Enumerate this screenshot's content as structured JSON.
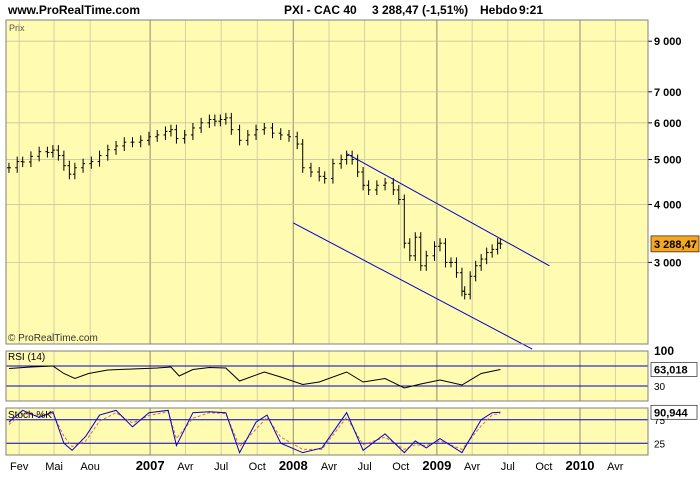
{
  "header": {
    "site": "www.ProRealTime.com",
    "instrument": "PXI - CAC 40",
    "price_change": "3 288,47 (-1,51%)",
    "period": "Hebdo",
    "time": "9:21"
  },
  "colors": {
    "panel_bg": "#fffbb0",
    "grid": "#c8c8a0",
    "frame": "#808080",
    "channel": "#0000cc",
    "price_bars": "#000000",
    "stoch_k": "#0000cc",
    "stoch_d": "#dd6666",
    "last_value_badge": "#f5a623"
  },
  "chart_data": [
    {
      "panel": "price",
      "type": "bar",
      "title": "Prix",
      "watermark": "© ProRealTime.com",
      "y_scale": "log",
      "ylim": [
        2000,
        10000
      ],
      "yticks": [
        {
          "value": 3000,
          "label": "3 000"
        },
        {
          "value": 4000,
          "label": "4 000"
        },
        {
          "value": 5000,
          "label": "5 000"
        },
        {
          "value": 6000,
          "label": "6 000"
        },
        {
          "value": 7000,
          "label": "7 000"
        },
        {
          "value": 9000,
          "label": "9 000"
        }
      ],
      "last_value": {
        "value": 3288.47,
        "label": "3 288,47"
      },
      "series": [
        {
          "type": "ohlc_weekly",
          "points": [
            [
              "2006-01-06",
              4800
            ],
            [
              "2006-01-27",
              4950
            ],
            [
              "2006-02-10",
              4940
            ],
            [
              "2006-03-03",
              5080
            ],
            [
              "2006-03-24",
              5200
            ],
            [
              "2006-04-14",
              5180
            ],
            [
              "2006-04-28",
              5240
            ],
            [
              "2006-05-12",
              5100
            ],
            [
              "2006-05-26",
              4850
            ],
            [
              "2006-06-09",
              4650
            ],
            [
              "2006-06-23",
              4800
            ],
            [
              "2006-07-14",
              4900
            ],
            [
              "2006-08-04",
              4950
            ],
            [
              "2006-08-25",
              5100
            ],
            [
              "2006-09-15",
              5250
            ],
            [
              "2006-10-06",
              5350
            ],
            [
              "2006-10-27",
              5450
            ],
            [
              "2006-11-17",
              5450
            ],
            [
              "2006-12-08",
              5500
            ],
            [
              "2006-12-29",
              5600
            ],
            [
              "2007-01-19",
              5650
            ],
            [
              "2007-02-09",
              5750
            ],
            [
              "2007-02-23",
              5800
            ],
            [
              "2007-03-09",
              5550
            ],
            [
              "2007-03-30",
              5650
            ],
            [
              "2007-04-20",
              5850
            ],
            [
              "2007-05-11",
              6000
            ],
            [
              "2007-06-01",
              6100
            ],
            [
              "2007-06-15",
              6050
            ],
            [
              "2007-06-29",
              6100
            ],
            [
              "2007-07-13",
              6150
            ],
            [
              "2007-07-27",
              5800
            ],
            [
              "2007-08-17",
              5500
            ],
            [
              "2007-09-07",
              5650
            ],
            [
              "2007-09-28",
              5800
            ],
            [
              "2007-10-19",
              5850
            ],
            [
              "2007-11-09",
              5700
            ],
            [
              "2007-11-30",
              5650
            ],
            [
              "2007-12-21",
              5600
            ],
            [
              "2008-01-11",
              5400
            ],
            [
              "2008-01-25",
              4800
            ],
            [
              "2008-02-15",
              4700
            ],
            [
              "2008-03-07",
              4600
            ],
            [
              "2008-03-21",
              4550
            ],
            [
              "2008-04-11",
              4900
            ],
            [
              "2008-05-02",
              5000
            ],
            [
              "2008-05-16",
              5100
            ],
            [
              "2008-05-30",
              5000
            ],
            [
              "2008-06-13",
              4700
            ],
            [
              "2008-06-27",
              4400
            ],
            [
              "2008-07-11",
              4300
            ],
            [
              "2008-08-01",
              4400
            ],
            [
              "2008-08-22",
              4450
            ],
            [
              "2008-09-12",
              4300
            ],
            [
              "2008-09-26",
              4100
            ],
            [
              "2008-10-10",
              3300
            ],
            [
              "2008-10-24",
              3100
            ],
            [
              "2008-11-07",
              3400
            ],
            [
              "2008-11-21",
              2950
            ],
            [
              "2008-12-05",
              3100
            ],
            [
              "2008-12-26",
              3250
            ],
            [
              "2009-01-09",
              3300
            ],
            [
              "2009-01-23",
              3000
            ],
            [
              "2009-02-06",
              3000
            ],
            [
              "2009-02-20",
              2850
            ],
            [
              "2009-03-06",
              2600
            ],
            [
              "2009-03-13",
              2560
            ],
            [
              "2009-03-27",
              2800
            ],
            [
              "2009-04-10",
              2950
            ],
            [
              "2009-04-24",
              3050
            ],
            [
              "2009-05-08",
              3150
            ],
            [
              "2009-05-22",
              3200
            ],
            [
              "2009-06-05",
              3300
            ],
            [
              "2009-06-12",
              3288.47
            ]
          ]
        },
        {
          "type": "trendline",
          "from": [
            "2008-05-16",
            5150
          ],
          "to": [
            "2009-10-15",
            2950
          ]
        },
        {
          "type": "trendline",
          "from": [
            "2008-01-01",
            3650
          ],
          "to": [
            "2009-09-01",
            1950
          ]
        }
      ]
    },
    {
      "panel": "rsi",
      "type": "line",
      "title": "RSI (14)",
      "ylim": [
        0,
        100
      ],
      "yticks": [
        {
          "value": 100,
          "label": "100"
        },
        {
          "value": 70,
          "label": "70"
        },
        {
          "value": 30,
          "label": "30"
        }
      ],
      "last_value": {
        "value": 63.018,
        "label": "63,018"
      },
      "series": [
        {
          "points": [
            [
              "2006-01-06",
              65
            ],
            [
              "2006-03-03",
              68
            ],
            [
              "2006-04-28",
              70
            ],
            [
              "2006-05-26",
              55
            ],
            [
              "2006-06-23",
              45
            ],
            [
              "2006-07-28",
              55
            ],
            [
              "2006-09-15",
              62
            ],
            [
              "2006-11-17",
              64
            ],
            [
              "2007-01-19",
              66
            ],
            [
              "2007-02-23",
              68
            ],
            [
              "2007-03-16",
              50
            ],
            [
              "2007-04-20",
              63
            ],
            [
              "2007-06-01",
              67
            ],
            [
              "2007-07-13",
              66
            ],
            [
              "2007-08-17",
              40
            ],
            [
              "2007-10-19",
              58
            ],
            [
              "2007-11-30",
              48
            ],
            [
              "2008-01-25",
              33
            ],
            [
              "2008-03-07",
              38
            ],
            [
              "2008-05-16",
              58
            ],
            [
              "2008-06-27",
              38
            ],
            [
              "2008-08-22",
              45
            ],
            [
              "2008-10-10",
              26
            ],
            [
              "2008-11-21",
              34
            ],
            [
              "2009-01-09",
              42
            ],
            [
              "2009-03-06",
              32
            ],
            [
              "2009-04-24",
              55
            ],
            [
              "2009-06-12",
              63
            ]
          ]
        }
      ]
    },
    {
      "panel": "stochastic",
      "type": "line",
      "title": "Stoch %K",
      "ylim": [
        0,
        100
      ],
      "yticks": [
        {
          "value": 75,
          "label": "75"
        },
        {
          "value": 25,
          "label": "25"
        }
      ],
      "last_value": {
        "value": 90.944,
        "label": "90,944"
      },
      "series": [
        {
          "name": "Stoch %K",
          "points": [
            [
              "2006-01-06",
              70
            ],
            [
              "2006-02-10",
              95
            ],
            [
              "2006-03-24",
              80
            ],
            [
              "2006-04-28",
              92
            ],
            [
              "2006-05-26",
              25
            ],
            [
              "2006-06-16",
              10
            ],
            [
              "2006-07-21",
              40
            ],
            [
              "2006-08-25",
              85
            ],
            [
              "2006-10-06",
              95
            ],
            [
              "2006-11-17",
              60
            ],
            [
              "2006-12-29",
              90
            ],
            [
              "2007-02-16",
              95
            ],
            [
              "2007-03-09",
              20
            ],
            [
              "2007-04-20",
              90
            ],
            [
              "2007-06-01",
              92
            ],
            [
              "2007-07-13",
              90
            ],
            [
              "2007-08-17",
              5
            ],
            [
              "2007-09-28",
              70
            ],
            [
              "2007-10-26",
              85
            ],
            [
              "2007-11-30",
              25
            ],
            [
              "2008-01-25",
              5
            ],
            [
              "2008-03-14",
              15
            ],
            [
              "2008-05-16",
              90
            ],
            [
              "2008-06-27",
              10
            ],
            [
              "2008-08-22",
              45
            ],
            [
              "2008-10-10",
              5
            ],
            [
              "2008-11-07",
              30
            ],
            [
              "2008-12-05",
              15
            ],
            [
              "2009-01-09",
              35
            ],
            [
              "2009-03-06",
              5
            ],
            [
              "2009-04-24",
              75
            ],
            [
              "2009-05-22",
              90
            ],
            [
              "2009-06-12",
              91
            ]
          ]
        },
        {
          "points": [
            [
              "2006-01-06",
              65
            ],
            [
              "2006-02-10",
              88
            ],
            [
              "2006-03-24",
              84
            ],
            [
              "2006-04-28",
              88
            ],
            [
              "2006-05-26",
              40
            ],
            [
              "2006-06-16",
              18
            ],
            [
              "2006-07-21",
              30
            ],
            [
              "2006-08-25",
              72
            ],
            [
              "2006-10-06",
              90
            ],
            [
              "2006-11-17",
              68
            ],
            [
              "2006-12-29",
              84
            ],
            [
              "2007-02-16",
              92
            ],
            [
              "2007-03-09",
              35
            ],
            [
              "2007-04-20",
              78
            ],
            [
              "2007-06-01",
              90
            ],
            [
              "2007-07-13",
              88
            ],
            [
              "2007-08-17",
              18
            ],
            [
              "2007-09-28",
              55
            ],
            [
              "2007-10-26",
              80
            ],
            [
              "2007-11-30",
              38
            ],
            [
              "2008-01-25",
              12
            ],
            [
              "2008-03-14",
              12
            ],
            [
              "2008-05-16",
              80
            ],
            [
              "2008-06-27",
              22
            ],
            [
              "2008-08-22",
              38
            ],
            [
              "2008-10-10",
              12
            ],
            [
              "2008-11-07",
              22
            ],
            [
              "2008-12-05",
              20
            ],
            [
              "2009-01-09",
              30
            ],
            [
              "2009-03-06",
              12
            ],
            [
              "2009-04-24",
              62
            ],
            [
              "2009-05-22",
              85
            ],
            [
              "2009-06-12",
              88
            ]
          ]
        }
      ]
    }
  ],
  "x_axis": {
    "ticks": [
      {
        "date": "2006-02-01",
        "label": "Fev",
        "major": false
      },
      {
        "date": "2006-05-01",
        "label": "Mai",
        "major": false
      },
      {
        "date": "2006-08-01",
        "label": "Aou",
        "major": false
      },
      {
        "date": "2007-01-01",
        "label": "2007",
        "major": true
      },
      {
        "date": "2007-04-01",
        "label": "Avr",
        "major": false
      },
      {
        "date": "2007-07-01",
        "label": "Jul",
        "major": false
      },
      {
        "date": "2007-10-01",
        "label": "Oct",
        "major": false
      },
      {
        "date": "2008-01-01",
        "label": "2008",
        "major": true
      },
      {
        "date": "2008-04-01",
        "label": "Avr",
        "major": false
      },
      {
        "date": "2008-07-01",
        "label": "Jul",
        "major": false
      },
      {
        "date": "2008-10-01",
        "label": "Oct",
        "major": false
      },
      {
        "date": "2009-01-01",
        "label": "2009",
        "major": true
      },
      {
        "date": "2009-04-01",
        "label": "Avr",
        "major": false
      },
      {
        "date": "2009-07-01",
        "label": "Jul",
        "major": false
      },
      {
        "date": "2009-10-01",
        "label": "Oct",
        "major": false
      },
      {
        "date": "2010-01-01",
        "label": "2010",
        "major": true
      },
      {
        "date": "2010-04-01",
        "label": "Avr",
        "major": false
      }
    ]
  }
}
